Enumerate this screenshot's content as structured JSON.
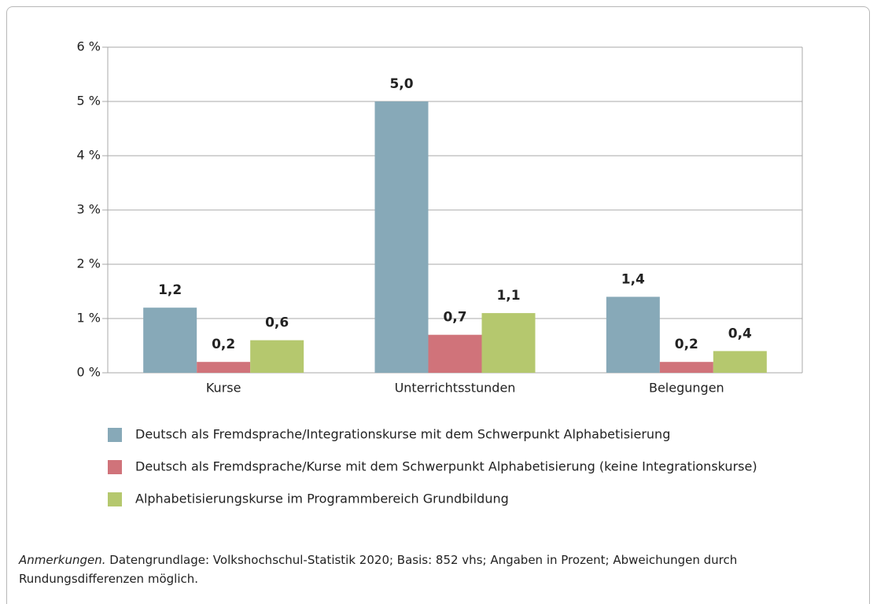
{
  "chart_data": {
    "type": "bar",
    "categories": [
      "Kurse",
      "Unterrichtsstunden",
      "Belegungen"
    ],
    "series": [
      {
        "name": "Deutsch als Fremdsprache/Integrationskurse mit dem Schwerpunkt Alphabetisierung",
        "color": "#87a9b8",
        "values": [
          1.2,
          5.0,
          1.4
        ],
        "value_labels": [
          "1,2",
          "5,0",
          "1,4"
        ]
      },
      {
        "name": "Deutsch als Fremdsprache/Kurse mit dem Schwerpunkt Alphabetisierung (keine Integrationskurse)",
        "color": "#d0737a",
        "values": [
          0.2,
          0.7,
          0.2
        ],
        "value_labels": [
          "0,2",
          "0,7",
          "0,2"
        ]
      },
      {
        "name": "Alphabetisierungskurse im Programmbereich Grundbildung",
        "color": "#b5c86e",
        "values": [
          0.6,
          1.1,
          0.4
        ],
        "value_labels": [
          "0,6",
          "1,1",
          "0,4"
        ]
      }
    ],
    "ylim": [
      0,
      6
    ],
    "yticks": [
      {
        "value": 0,
        "label": "0 %"
      },
      {
        "value": 1,
        "label": "1 %"
      },
      {
        "value": 2,
        "label": "2 %"
      },
      {
        "value": 3,
        "label": "3 %"
      },
      {
        "value": 4,
        "label": "4 %"
      },
      {
        "value": 5,
        "label": "5 %"
      },
      {
        "value": 6,
        "label": "6 %"
      }
    ],
    "grid": true,
    "note_label": "Anmerkungen.",
    "note": "Datengrundlage: Volkshochschul-Statistik 2020; Basis: 852 vhs; Angaben in Prozent; Abweichungen durch Rundungsdifferenzen möglich."
  }
}
